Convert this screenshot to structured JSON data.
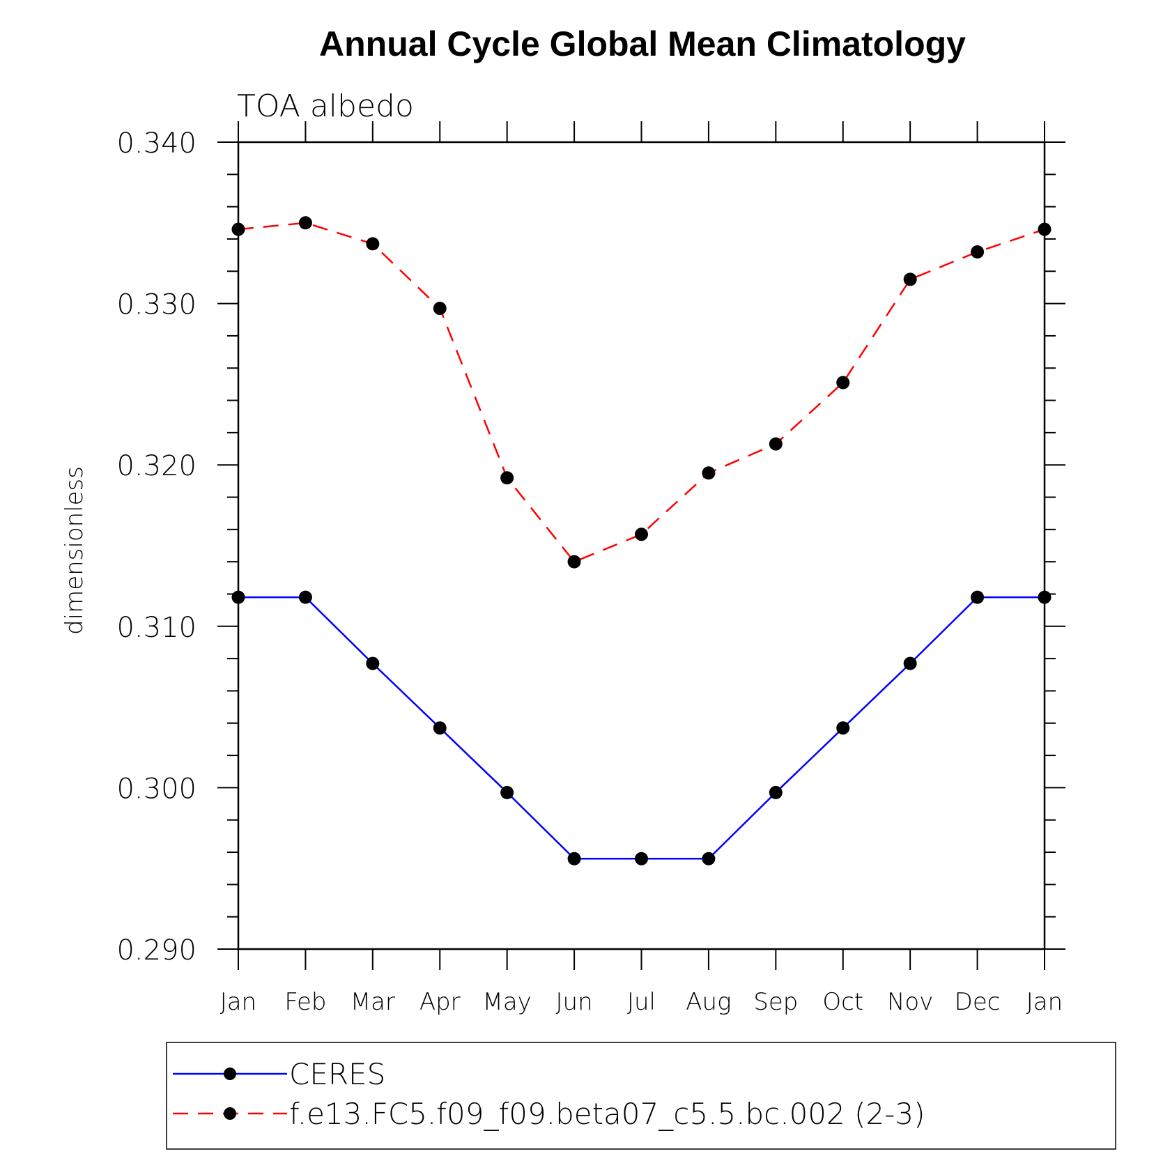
{
  "chart_data": {
    "type": "line",
    "title": "Annual Cycle Global Mean Climatology",
    "subtitle": "TOA albedo",
    "ylabel": "dimensionless",
    "xlabel": "",
    "categories": [
      "Jan",
      "Feb",
      "Mar",
      "Apr",
      "May",
      "Jun",
      "Jul",
      "Aug",
      "Sep",
      "Oct",
      "Nov",
      "Dec",
      "Jan"
    ],
    "ylim": [
      0.29,
      0.34
    ],
    "yticks": [
      "0.290",
      "0.300",
      "0.310",
      "0.320",
      "0.330",
      "0.340"
    ],
    "yticks_values": [
      0.29,
      0.3,
      0.31,
      0.32,
      0.33,
      0.34
    ],
    "grid": false,
    "legend_position": "bottom",
    "series": [
      {
        "name": "CERES",
        "color": "#0000ff",
        "line_style": "solid",
        "marker": "filled-circle",
        "values": [
          0.3118,
          0.3118,
          0.3077,
          0.3037,
          0.2997,
          0.2956,
          0.2956,
          0.2956,
          0.2997,
          0.3037,
          0.3077,
          0.3118,
          0.3118
        ]
      },
      {
        "name": "f.e13.FC5.f09_f09.beta07_c5.5.bc.002 (2-3)",
        "color": "#ff0000",
        "line_style": "dashed",
        "marker": "filled-circle",
        "values": [
          0.3346,
          0.335,
          0.3337,
          0.3297,
          0.3192,
          0.314,
          0.3157,
          0.3195,
          0.3213,
          0.3251,
          0.3315,
          0.3332,
          0.3346
        ]
      }
    ]
  }
}
